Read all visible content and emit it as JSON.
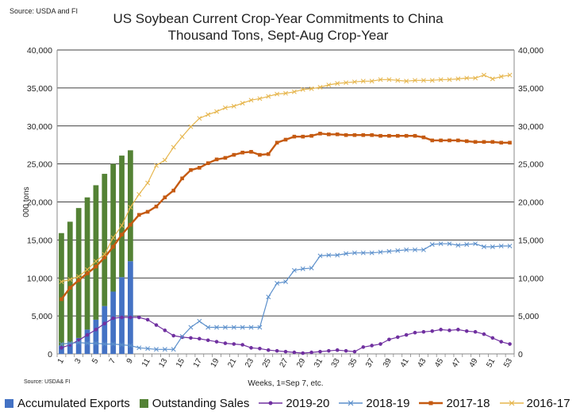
{
  "source_top": "Source: USDA and  FI",
  "source_bottom": "Source: USDA& FI",
  "chart_data": {
    "type": "bar+line",
    "title": "US Soybean Current Crop-Year Commitments to China",
    "subtitle": "Thousand Tons, Sept-Aug Crop-Year",
    "xlabel": "Weeks, 1=Sep 7, etc.",
    "ylabel": "000 tons",
    "ylim": [
      0,
      40000
    ],
    "yticks": [
      "0",
      "5,000",
      "10,000",
      "15,000",
      "20,000",
      "25,000",
      "30,000",
      "35,000",
      "40,000"
    ],
    "y2ticks": [
      "0",
      "5,000",
      "10,000",
      "15,000",
      "20,000",
      "25,000",
      "30,000",
      "35,000",
      "40,000"
    ],
    "xticks": [
      "1",
      "3",
      "5",
      "7",
      "9",
      "11",
      "13",
      "15",
      "17",
      "19",
      "21",
      "23",
      "25",
      "27",
      "29",
      "31",
      "33",
      "35",
      "37",
      "39",
      "41",
      "43",
      "45",
      "47",
      "49",
      "51",
      "53"
    ],
    "grid": true,
    "legend_position": "bottom",
    "stacked_bars": {
      "weeks": [
        1,
        2,
        3,
        4,
        5,
        6,
        7,
        8,
        9
      ],
      "series": [
        {
          "name": "Accumulated Exports",
          "color": "#4472c4",
          "values": [
            1100,
            1500,
            2100,
            3200,
            4500,
            6300,
            8200,
            10100,
            12200
          ]
        },
        {
          "name": "Outstanding Sales",
          "color": "#548235",
          "values": [
            14800,
            15900,
            17100,
            17400,
            17700,
            17400,
            16800,
            16000,
            14600
          ]
        }
      ]
    },
    "lines": [
      {
        "name": "2019-20",
        "color": "#7030a0",
        "marker": "dot",
        "values": [
          800,
          1200,
          1800,
          2500,
          3200,
          4000,
          4700,
          4800,
          4800,
          4800,
          4500,
          3800,
          3100,
          2400,
          2200,
          2100,
          2000,
          1800,
          1600,
          1400,
          1300,
          1200,
          800,
          700,
          500,
          400,
          300,
          200,
          100,
          200,
          300,
          400,
          500,
          400,
          300,
          900,
          1100,
          1300,
          1900,
          2200,
          2500,
          2800,
          2900,
          3000,
          3200,
          3100,
          3200,
          3000,
          2900,
          2600,
          2100,
          1600,
          1300
        ]
      },
      {
        "name": "2018-19",
        "color": "#5b8fcb",
        "marker": "x",
        "values": [
          1300,
          1400,
          1500,
          1400,
          1400,
          1300,
          1300,
          1200,
          1100,
          800,
          700,
          600,
          600,
          600,
          2300,
          3500,
          4300,
          3500,
          3500,
          3500,
          3500,
          3500,
          3500,
          3500,
          7500,
          9300,
          9500,
          11000,
          11200,
          11300,
          12900,
          13000,
          13000,
          13200,
          13300,
          13300,
          13300,
          13400,
          13500,
          13600,
          13700,
          13700,
          13700,
          14400,
          14500,
          14500,
          14300,
          14400,
          14500,
          14100,
          14100,
          14200,
          14200
        ]
      },
      {
        "name": "2017-18",
        "color": "#c55a11",
        "marker": "square",
        "values": [
          7200,
          8700,
          9700,
          10600,
          11500,
          12700,
          14100,
          15700,
          17000,
          18300,
          18700,
          19400,
          20600,
          21500,
          23100,
          24200,
          24500,
          25100,
          25600,
          25800,
          26200,
          26500,
          26600,
          26200,
          26300,
          27800,
          28200,
          28600,
          28600,
          28700,
          29000,
          28900,
          28900,
          28800,
          28800,
          28800,
          28800,
          28700,
          28700,
          28700,
          28700,
          28700,
          28500,
          28100,
          28100,
          28100,
          28100,
          28000,
          27900,
          27900,
          27900,
          27800,
          27800
        ]
      },
      {
        "name": "2016-17",
        "color": "#e6b54b",
        "marker": "x",
        "values": [
          9500,
          9800,
          10200,
          11100,
          12200,
          13100,
          15300,
          16900,
          19300,
          21000,
          22500,
          24800,
          25500,
          27200,
          28600,
          29900,
          31000,
          31500,
          31900,
          32400,
          32600,
          33000,
          33400,
          33600,
          33900,
          34200,
          34300,
          34500,
          34800,
          34900,
          35100,
          35400,
          35600,
          35700,
          35800,
          35900,
          35900,
          36100,
          36100,
          36000,
          35900,
          36000,
          36000,
          36000,
          36100,
          36100,
          36200,
          36300,
          36300,
          36700,
          36200,
          36500,
          36700
        ]
      }
    ]
  }
}
